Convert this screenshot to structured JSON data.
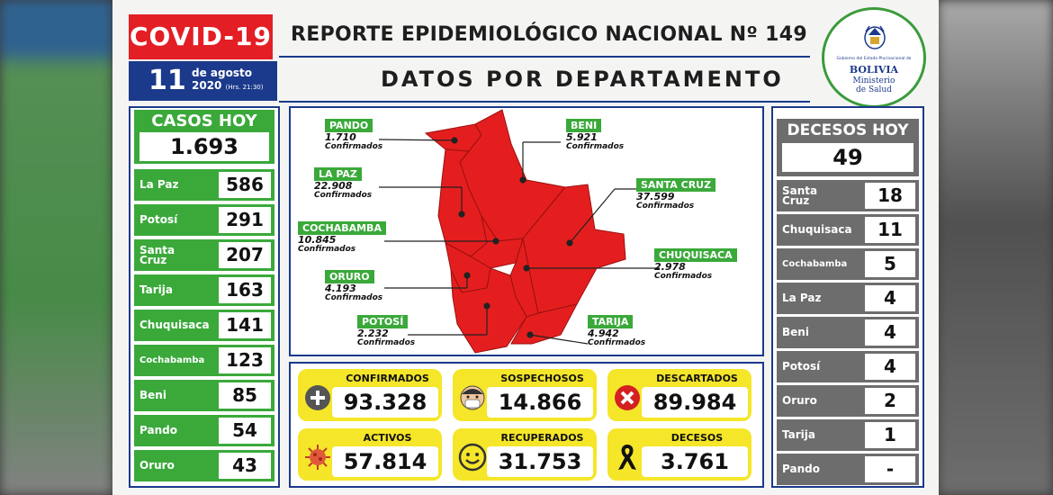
{
  "header": {
    "badge": "COVID-19",
    "day": "11",
    "month_year": "de agosto 2020",
    "month": "de agosto",
    "year": "2020",
    "hour": "(Hrs. 21:30)",
    "title": "REPORTE EPIDEMIOLÓGICO NACIONAL Nº 149",
    "subtitle": "DATOS POR DEPARTAMENTO"
  },
  "logo": {
    "small_text": "Gobierno del Estado Plurinacional de",
    "country": "BOLIVIA",
    "ministry_l1": "Ministerio",
    "ministry_l2": "de Salud"
  },
  "casos_hoy": {
    "title": "CASOS HOY",
    "total": "1.693",
    "rows": [
      {
        "name": "La Paz",
        "value": "586"
      },
      {
        "name": "Potosí",
        "value": "291"
      },
      {
        "name": "Santa Cruz",
        "value": "207"
      },
      {
        "name": "Tarija",
        "value": "163"
      },
      {
        "name": "Chuquisaca",
        "value": "141"
      },
      {
        "name": "Cochabamba",
        "value": "123"
      },
      {
        "name": "Beni",
        "value": "85"
      },
      {
        "name": "Pando",
        "value": "54"
      },
      {
        "name": "Oruro",
        "value": "43"
      }
    ]
  },
  "decesos_hoy": {
    "title": "DECESOS HOY",
    "total": "49",
    "rows": [
      {
        "name": "Santa Cruz",
        "value": "18"
      },
      {
        "name": "Chuquisaca",
        "value": "11"
      },
      {
        "name": "Cochabamba",
        "value": "5"
      },
      {
        "name": "La Paz",
        "value": "4"
      },
      {
        "name": "Beni",
        "value": "4"
      },
      {
        "name": "Potosí",
        "value": "4"
      },
      {
        "name": "Oruro",
        "value": "2"
      },
      {
        "name": "Tarija",
        "value": "1"
      },
      {
        "name": "Pando",
        "value": "-"
      }
    ]
  },
  "map": {
    "confirmed_label": "Confirmados",
    "departments": {
      "pando": {
        "name": "PANDO",
        "value": "1.710"
      },
      "beni": {
        "name": "BENI",
        "value": "5.921"
      },
      "lapaz": {
        "name": "LA PAZ",
        "value": "22.908"
      },
      "santacruz": {
        "name": "SANTA CRUZ",
        "value": "37.599"
      },
      "cochabamba": {
        "name": "COCHABAMBA",
        "value": "10.845"
      },
      "chuquisaca": {
        "name": "CHUQUISACA",
        "value": "2.978"
      },
      "oruro": {
        "name": "ORURO",
        "value": "4.193"
      },
      "potosi": {
        "name": "POTOSÍ",
        "value": "2.232"
      },
      "tarija": {
        "name": "TARIJA",
        "value": "4.942"
      }
    }
  },
  "stats": {
    "confirmados": {
      "label": "CONFIRMADOS",
      "value": "93.328",
      "icon": "plus-circle-icon"
    },
    "sospechosos": {
      "label": "SOSPECHOSOS",
      "value": "14.866",
      "icon": "masked-face-icon"
    },
    "descartados": {
      "label": "DESCARTADOS",
      "value": "89.984",
      "icon": "x-circle-icon"
    },
    "activos": {
      "label": "ACTIVOS",
      "value": "57.814",
      "icon": "virus-icon"
    },
    "recuperados": {
      "label": "RECUPERADOS",
      "value": "31.753",
      "icon": "smiley-icon"
    },
    "decesos": {
      "label": "DECESOS",
      "value": "3.761",
      "icon": "black-ribbon-icon"
    }
  },
  "colors": {
    "red": "#e31e24",
    "navy": "#1c3a8c",
    "green": "#3aa93a",
    "gray": "#6d6d6d",
    "yellow": "#f5e629"
  }
}
